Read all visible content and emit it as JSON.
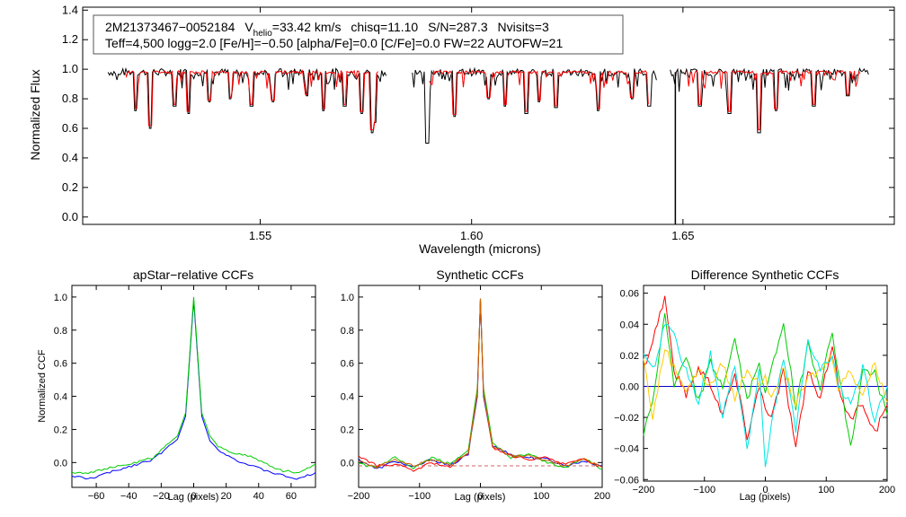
{
  "info": {
    "star_id": "2M21373467−0052184",
    "vhelio_label": "V",
    "vhelio_sub": "helio",
    "vhelio_value": "=33.42 km/s",
    "chisq": "chisq=11.10",
    "snr": "S/N=287.3",
    "nvisits": "Nvisits=3",
    "params": "Teff=4,500 logg=2.0 [Fe/H]=−0.50 [alpha/Fe]=0.0 [C/Fe]=0.0 FW=22 AUTOFW=21"
  },
  "colors": {
    "observed": "#000000",
    "model": "#ff0000",
    "zero_line": "#0000cc",
    "ccf_series": [
      "#0000ff",
      "#00cc00",
      "#ff0000",
      "#ffcc00",
      "#00e5e5",
      "#cc6600"
    ]
  },
  "chart_data": [
    {
      "id": "spectrum",
      "type": "line",
      "title": "",
      "xlabel": "Wavelength (microns)",
      "ylabel": "Normalized Flux",
      "xlim": [
        1.508,
        1.7
      ],
      "ylim": [
        -0.05,
        1.42
      ],
      "xticks": [
        1.55,
        1.6,
        1.65
      ],
      "xtick_labels": [
        "1.55",
        "1.60",
        "1.65"
      ],
      "yticks": [
        0.0,
        0.2,
        0.4,
        0.6,
        0.8,
        1.0,
        1.2,
        1.4
      ],
      "ytick_labels": [
        "0.0",
        "0.2",
        "0.4",
        "0.6",
        "0.8",
        "1.0",
        "1.2",
        "1.4"
      ],
      "chips": [
        [
          1.514,
          1.58
        ],
        [
          1.586,
          1.644
        ],
        [
          1.647,
          1.694
        ]
      ],
      "continuum": 0.98,
      "lines": [
        [
          1.5206,
          0.72
        ],
        [
          1.524,
          0.6
        ],
        [
          1.5298,
          0.75
        ],
        [
          1.533,
          0.7
        ],
        [
          1.538,
          0.78
        ],
        [
          1.543,
          0.8
        ],
        [
          1.548,
          0.75
        ],
        [
          1.553,
          0.78
        ],
        [
          1.561,
          0.82
        ],
        [
          1.565,
          0.72
        ],
        [
          1.57,
          0.75
        ],
        [
          1.574,
          0.7
        ],
        [
          1.5765,
          0.57
        ],
        [
          1.577,
          0.64
        ],
        [
          1.5895,
          0.5
        ],
        [
          1.596,
          0.68
        ],
        [
          1.604,
          0.8
        ],
        [
          1.608,
          0.75
        ],
        [
          1.613,
          0.7
        ],
        [
          1.616,
          0.78
        ],
        [
          1.62,
          0.74
        ],
        [
          1.63,
          0.72
        ],
        [
          1.638,
          0.8
        ],
        [
          1.642,
          0.75
        ],
        [
          1.654,
          0.75
        ],
        [
          1.661,
          0.7
        ],
        [
          1.668,
          0.57
        ],
        [
          1.672,
          0.72
        ],
        [
          1.681,
          0.75
        ],
        [
          1.689,
          0.82
        ]
      ],
      "dropout": [
        1.6482,
        -0.05
      ]
    },
    {
      "id": "apstar-ccf",
      "type": "line",
      "title": "apStar−relative CCFs",
      "xlabel": "Lag (pixels)",
      "ylabel": "Normalized CCF",
      "xlim": [
        -75,
        75
      ],
      "ylim": [
        -0.15,
        1.07
      ],
      "xticks": [
        -60,
        -40,
        -20,
        0,
        20,
        40,
        60
      ],
      "xtick_labels": [
        "−60",
        "−40",
        "−20",
        "0",
        "20",
        "40",
        "60"
      ],
      "yticks": [
        0.0,
        0.2,
        0.4,
        0.6,
        0.8,
        1.0
      ],
      "ytick_labels": [
        "0.0",
        "0.2",
        "0.4",
        "0.6",
        "0.8",
        "1.0"
      ],
      "series": [
        {
          "name": "blue",
          "x": [
            -75,
            -65,
            -55,
            -45,
            -35,
            -25,
            -15,
            -10,
            -5,
            -2,
            0,
            2,
            5,
            10,
            15,
            25,
            35,
            45,
            55,
            65,
            75
          ],
          "y": [
            -0.08,
            -0.1,
            -0.07,
            -0.04,
            -0.01,
            0.02,
            0.1,
            0.14,
            0.28,
            0.7,
            0.98,
            0.7,
            0.28,
            0.13,
            0.08,
            0.02,
            -0.02,
            -0.05,
            -0.08,
            -0.1,
            -0.06
          ]
        },
        {
          "name": "green",
          "x": [
            -75,
            -65,
            -55,
            -45,
            -35,
            -25,
            -15,
            -10,
            -5,
            -2,
            0,
            2,
            5,
            10,
            15,
            25,
            35,
            45,
            55,
            65,
            75
          ],
          "y": [
            -0.06,
            -0.06,
            -0.04,
            -0.02,
            0.0,
            0.03,
            0.12,
            0.16,
            0.3,
            0.72,
            1.0,
            0.72,
            0.3,
            0.16,
            0.1,
            0.05,
            0.04,
            -0.01,
            -0.05,
            -0.06,
            -0.01
          ]
        }
      ]
    },
    {
      "id": "synthetic-ccf",
      "type": "line",
      "title": "Synthetic CCFs",
      "xlabel": "Lag (pixels)",
      "ylabel": "",
      "xlim": [
        -200,
        200
      ],
      "ylim": [
        -0.15,
        1.07
      ],
      "xticks": [
        -200,
        -100,
        0,
        100,
        200
      ],
      "xtick_labels": [
        "−200",
        "−100",
        "0",
        "100",
        "200"
      ],
      "yticks": [
        0.0,
        0.2,
        0.4,
        0.6,
        0.8,
        1.0
      ],
      "ytick_labels": [
        "0.0",
        "0.2",
        "0.4",
        "0.6",
        "0.8",
        "1.0"
      ],
      "series": [
        {
          "name": "blue",
          "x": [
            -200,
            -170,
            -140,
            -110,
            -80,
            -50,
            -20,
            -5,
            0,
            5,
            20,
            50,
            80,
            110,
            140,
            170,
            200
          ],
          "y": [
            0.02,
            -0.04,
            0.01,
            -0.03,
            0.02,
            -0.02,
            0.05,
            0.4,
            0.99,
            0.4,
            0.1,
            0.05,
            0.03,
            0.02,
            -0.02,
            0.01,
            -0.02
          ]
        },
        {
          "name": "green",
          "x": [
            -200,
            -170,
            -140,
            -110,
            -80,
            -50,
            -20,
            -5,
            0,
            5,
            20,
            50,
            80,
            110,
            140,
            170,
            200
          ],
          "y": [
            -0.01,
            -0.03,
            0.03,
            -0.04,
            0.03,
            -0.01,
            0.08,
            0.45,
            0.99,
            0.45,
            0.12,
            0.03,
            0.05,
            0.0,
            -0.03,
            0.03,
            -0.04
          ]
        },
        {
          "name": "red",
          "x": [
            -200,
            -170,
            -140,
            -110,
            -80,
            -50,
            -20,
            -5,
            0,
            5,
            20,
            50,
            80,
            110,
            140,
            170,
            200
          ],
          "y": [
            0.04,
            -0.02,
            -0.01,
            -0.05,
            0.0,
            -0.03,
            0.06,
            0.42,
            0.99,
            0.42,
            0.09,
            0.04,
            0.02,
            0.03,
            -0.01,
            0.02,
            -0.03
          ]
        },
        {
          "name": "orange",
          "x": [
            -200,
            -170,
            -140,
            -110,
            -80,
            -50,
            -20,
            -5,
            0,
            5,
            20,
            50,
            80,
            110,
            140,
            170,
            200
          ],
          "y": [
            0.01,
            -0.03,
            0.02,
            -0.02,
            0.02,
            -0.02,
            0.06,
            0.42,
            0.99,
            0.42,
            0.1,
            0.04,
            0.04,
            0.01,
            -0.02,
            0.02,
            -0.03
          ]
        }
      ],
      "reference": {
        "x": [
          -200,
          200
        ],
        "y": [
          -0.02,
          -0.02
        ]
      }
    },
    {
      "id": "difference-ccf",
      "type": "line",
      "title": "Difference Synthetic CCFs",
      "xlabel": "Lag (pixels)",
      "ylabel": "",
      "xlim": [
        -200,
        200
      ],
      "ylim": [
        -0.061,
        0.065
      ],
      "xticks": [
        -200,
        -100,
        0,
        100,
        200
      ],
      "xtick_labels": [
        "−200",
        "−100",
        "0",
        "100",
        "200"
      ],
      "yticks": [
        -0.06,
        -0.04,
        -0.02,
        0.0,
        0.02,
        0.04,
        0.06
      ],
      "ytick_labels": [
        "−0.06",
        "−0.04",
        "−0.02",
        "0.00",
        "0.02",
        "0.04",
        "0.06"
      ],
      "series": [
        {
          "name": "red",
          "x": [
            -200,
            -185,
            -165,
            -150,
            -130,
            -110,
            -90,
            -70,
            -50,
            -30,
            -10,
            0,
            10,
            30,
            50,
            70,
            90,
            110,
            120,
            140,
            160,
            180,
            200
          ],
          "y": [
            0.012,
            0.03,
            0.058,
            0.01,
            -0.005,
            0.012,
            0.002,
            -0.018,
            0.008,
            -0.032,
            0.0,
            -0.012,
            -0.02,
            0.01,
            -0.04,
            0.01,
            -0.01,
            0.028,
            0.0,
            -0.022,
            -0.01,
            -0.03,
            -0.012
          ]
        },
        {
          "name": "green",
          "x": [
            -200,
            -185,
            -165,
            -150,
            -130,
            -110,
            -90,
            -70,
            -50,
            -30,
            -10,
            0,
            10,
            30,
            50,
            70,
            90,
            110,
            120,
            140,
            160,
            180,
            200
          ],
          "y": [
            -0.03,
            -0.01,
            0.048,
            0.0,
            0.018,
            -0.01,
            0.015,
            0.0,
            0.03,
            -0.01,
            0.018,
            -0.005,
            0.01,
            0.042,
            -0.015,
            0.028,
            0.0,
            0.035,
            0.01,
            -0.04,
            0.01,
            0.008,
            -0.018
          ]
        },
        {
          "name": "yellow",
          "x": [
            -200,
            -185,
            -165,
            -150,
            -130,
            -110,
            -90,
            -70,
            -50,
            -30,
            -10,
            0,
            10,
            30,
            50,
            70,
            90,
            110,
            120,
            140,
            160,
            180,
            200
          ],
          "y": [
            0.018,
            -0.02,
            0.025,
            0.012,
            -0.002,
            0.01,
            0.0,
            0.015,
            -0.008,
            0.012,
            0.0,
            0.008,
            -0.01,
            0.012,
            -0.012,
            0.005,
            0.01,
            0.02,
            0.0,
            0.01,
            -0.005,
            0.015,
            -0.01
          ]
        },
        {
          "name": "cyan",
          "x": [
            -200,
            -185,
            -165,
            -150,
            -130,
            -110,
            -90,
            -70,
            -50,
            -30,
            -10,
            0,
            10,
            30,
            50,
            70,
            90,
            110,
            120,
            140,
            160,
            180,
            200
          ],
          "y": [
            0.018,
            0.01,
            0.04,
            0.032,
            0.01,
            -0.01,
            0.02,
            -0.02,
            0.015,
            -0.04,
            0.01,
            -0.054,
            -0.025,
            0.02,
            -0.03,
            0.03,
            0.01,
            0.018,
            0.0,
            -0.01,
            0.012,
            -0.022,
            0.0
          ]
        }
      ],
      "reference": {
        "x": [
          -200,
          200
        ],
        "y": [
          0.0,
          0.0
        ]
      }
    }
  ]
}
